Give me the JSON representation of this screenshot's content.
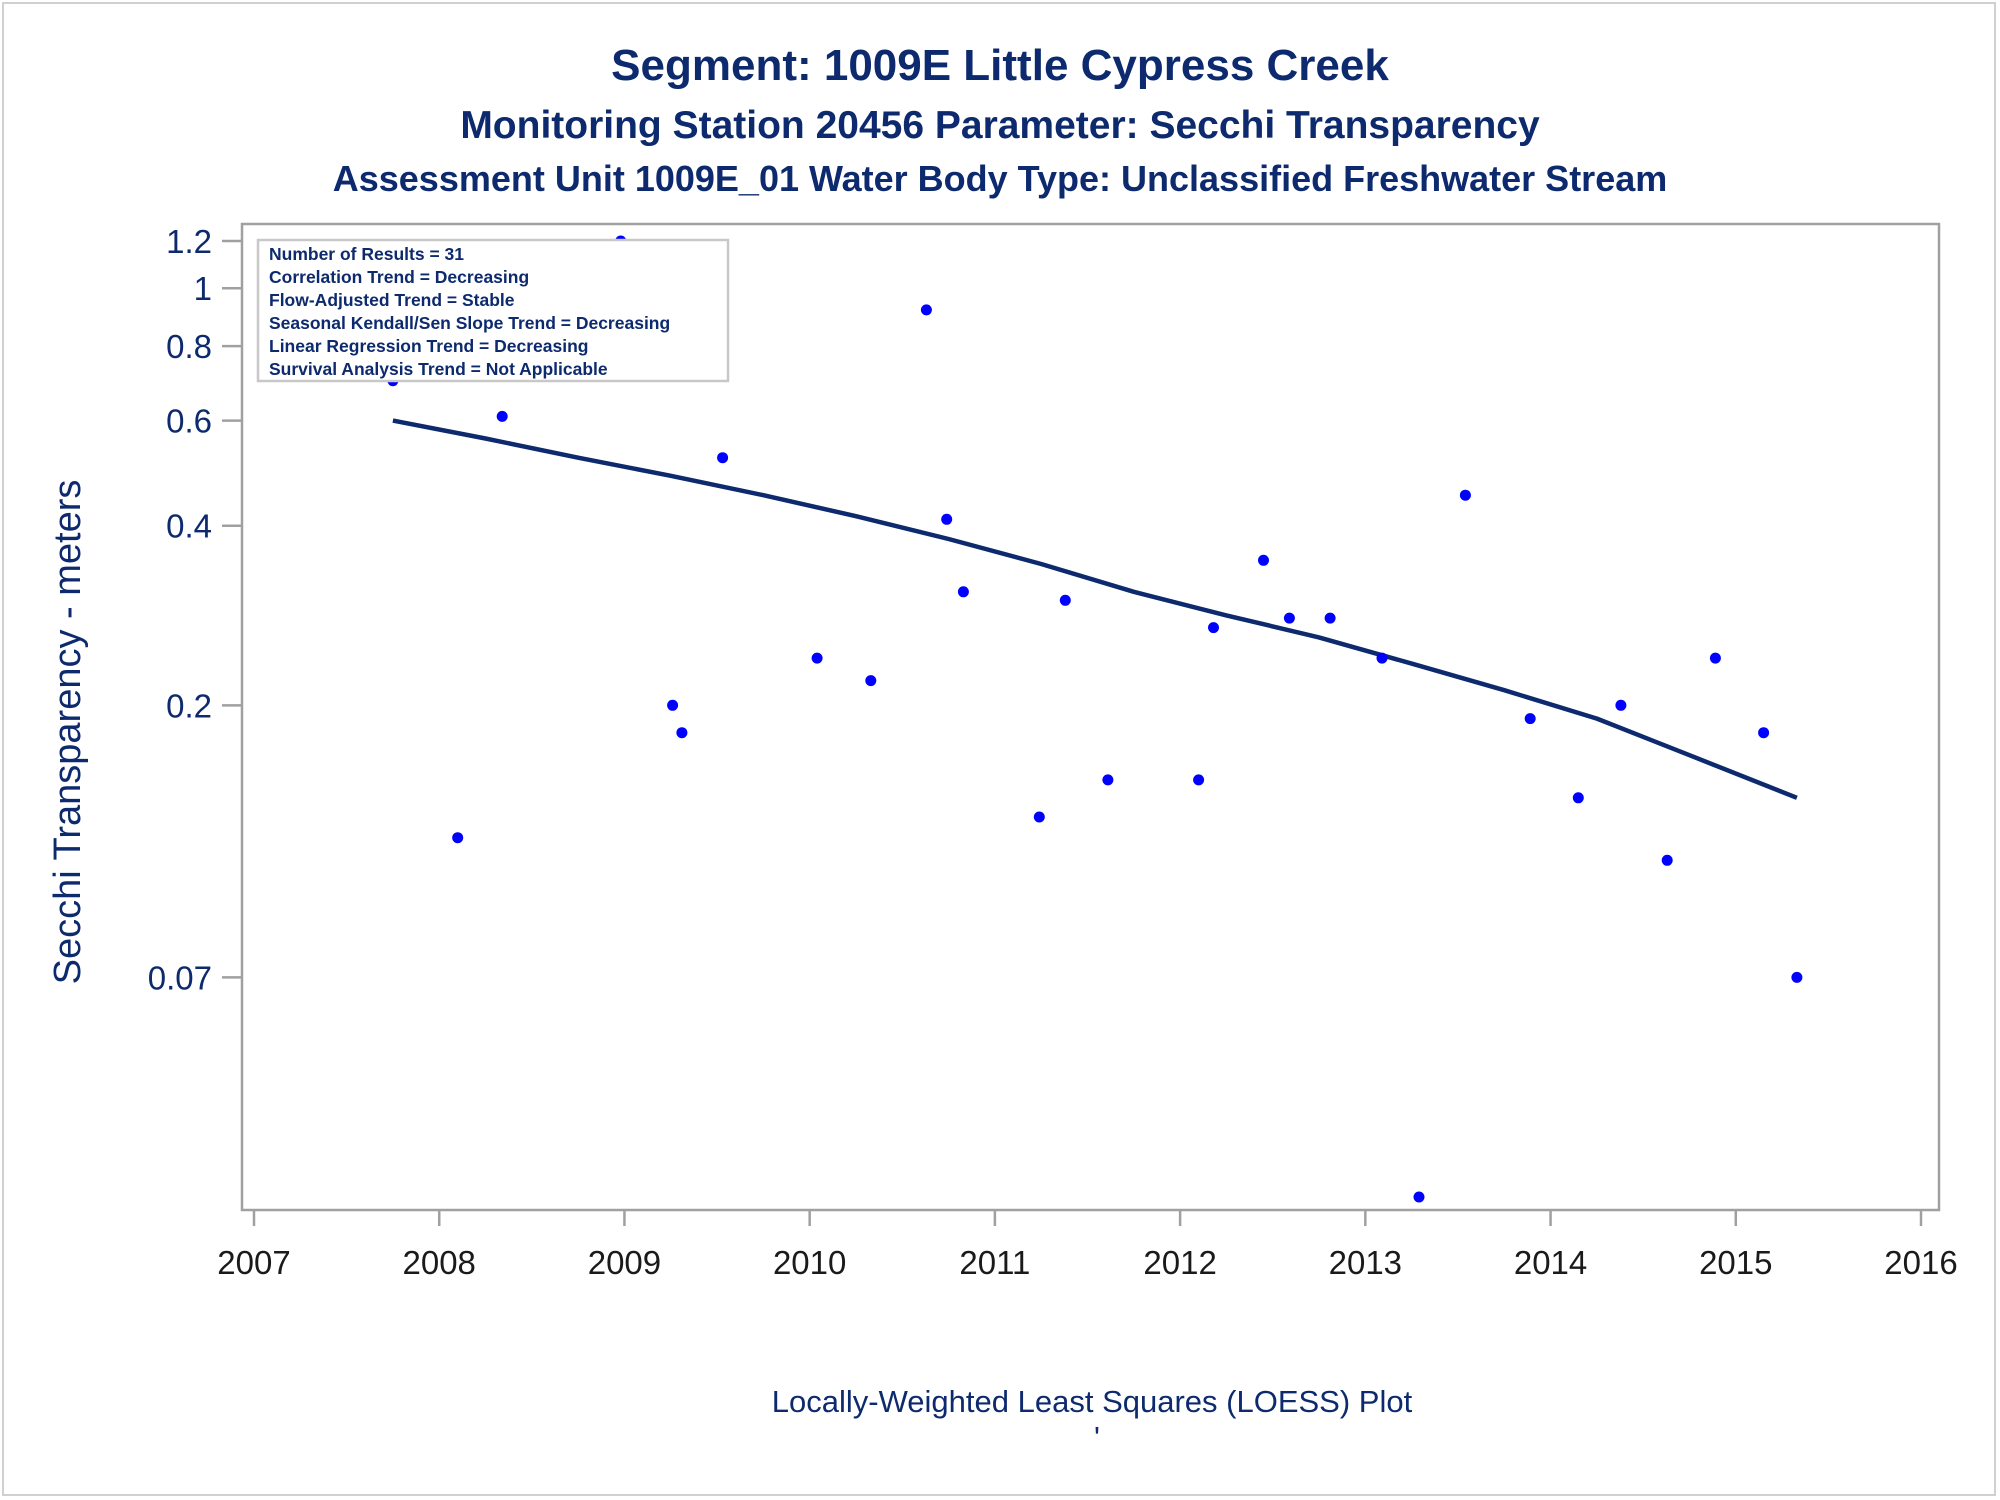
{
  "titles": {
    "line1": "Segment: 1009E  Little Cypress Creek",
    "line2": "Monitoring Station 20456 Parameter: Secchi Transparency",
    "line3": "Assessment Unit 1009E_01   Water Body Type: Unclassified Freshwater Stream"
  },
  "footnote": "Locally-Weighted Least Squares (LOESS) Plot",
  "footnote_mark": "'",
  "stats_box": {
    "lines": [
      "Number of Results = 31",
      "Correlation Trend = Decreasing",
      "Flow-Adjusted Trend = Stable",
      "Seasonal Kendall/Sen Slope Trend = Decreasing",
      "Linear Regression Trend = Decreasing",
      "Survival Analysis Trend = Not Applicable"
    ]
  },
  "colors": {
    "text": "#0d2a6e",
    "axis": "#a0a0a0",
    "points": "#0000ff",
    "loess_line": "#0d2a6e",
    "tick_labels_x": "#1a1a1a"
  },
  "chart_data": {
    "type": "scatter",
    "ylabel": "Secchi Transparency - meters",
    "xlabel": "",
    "y_scale": "log",
    "xlim": [
      2007,
      2016
    ],
    "ylim": [
      0.03,
      1.2
    ],
    "x_ticks": [
      2007,
      2008,
      2009,
      2010,
      2011,
      2012,
      2013,
      2014,
      2015,
      2016
    ],
    "y_ticks": [
      0.07,
      0.2,
      0.4,
      0.6,
      0.8,
      1,
      1.2
    ],
    "grid": false,
    "series": [
      {
        "type": "scatter",
        "marker": "dot",
        "x": [
          2007.75,
          2008.1,
          2008.34,
          2008.74,
          2008.98,
          2009.26,
          2009.31,
          2009.53,
          2010.04,
          2010.33,
          2010.63,
          2010.74,
          2010.83,
          2011.24,
          2011.38,
          2011.61,
          2012.1,
          2012.18,
          2012.45,
          2012.59,
          2012.81,
          2013.09,
          2013.29,
          2013.54,
          2013.89,
          2014.15,
          2014.38,
          2014.63,
          2014.89,
          2015.15,
          2015.33
        ],
        "y": [
          0.7,
          0.12,
          0.61,
          0.74,
          1.2,
          0.2,
          0.18,
          0.52,
          0.24,
          0.22,
          0.92,
          0.41,
          0.31,
          0.13,
          0.3,
          0.15,
          0.15,
          0.27,
          0.35,
          0.28,
          0.28,
          0.24,
          0.03,
          0.45,
          0.19,
          0.14,
          0.2,
          0.11,
          0.24,
          0.18,
          0.07
        ]
      },
      {
        "type": "line",
        "x": [
          2007.75,
          2008.25,
          2008.75,
          2009.25,
          2009.75,
          2010.25,
          2010.75,
          2011.25,
          2011.75,
          2012.25,
          2012.75,
          2013.25,
          2013.75,
          2014.25,
          2014.75,
          2015.33
        ],
        "y": [
          0.6,
          0.56,
          0.52,
          0.485,
          0.45,
          0.415,
          0.38,
          0.345,
          0.31,
          0.283,
          0.26,
          0.235,
          0.212,
          0.19,
          0.165,
          0.14
        ]
      }
    ]
  }
}
